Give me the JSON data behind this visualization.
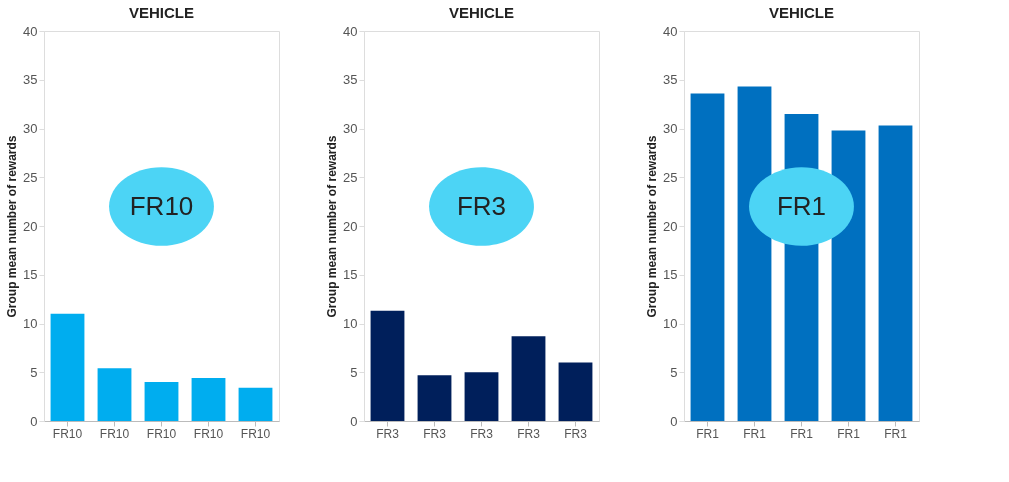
{
  "chart_data": [
    {
      "type": "bar",
      "title": "VEHICLE",
      "ylabel": "Group mean number of rewards",
      "categories": [
        "FR10",
        "FR10",
        "FR10",
        "FR10",
        "FR10"
      ],
      "values": [
        11.0,
        5.4,
        4.0,
        4.4,
        3.4
      ],
      "color": "#00adef",
      "ylim": [
        0,
        40
      ],
      "yticks": [
        0,
        5,
        10,
        15,
        20,
        25,
        30,
        35,
        40
      ],
      "grid": false,
      "annotations": [
        "FR10"
      ]
    },
    {
      "type": "bar",
      "title": "VEHICLE",
      "ylabel": "Group mean number of rewards",
      "categories": [
        "FR3",
        "FR3",
        "FR3",
        "FR3",
        "FR3"
      ],
      "values": [
        11.3,
        4.7,
        5.0,
        8.7,
        6.0
      ],
      "color": "#001f5b",
      "ylim": [
        0,
        40
      ],
      "yticks": [
        0,
        5,
        10,
        15,
        20,
        25,
        30,
        35,
        40
      ],
      "grid": false,
      "annotations": [
        "FR3"
      ]
    },
    {
      "type": "bar",
      "title": "VEHICLE",
      "ylabel": "Group mean number of rewards",
      "categories": [
        "FR1",
        "FR1",
        "FR1",
        "FR1",
        "FR1"
      ],
      "values": [
        33.6,
        34.3,
        31.5,
        29.8,
        30.3
      ],
      "color": "#0070c0",
      "ylim": [
        0,
        40
      ],
      "yticks": [
        0,
        5,
        10,
        15,
        20,
        25,
        30,
        35,
        40
      ],
      "grid": false,
      "annotations": [
        "FR1"
      ]
    }
  ]
}
